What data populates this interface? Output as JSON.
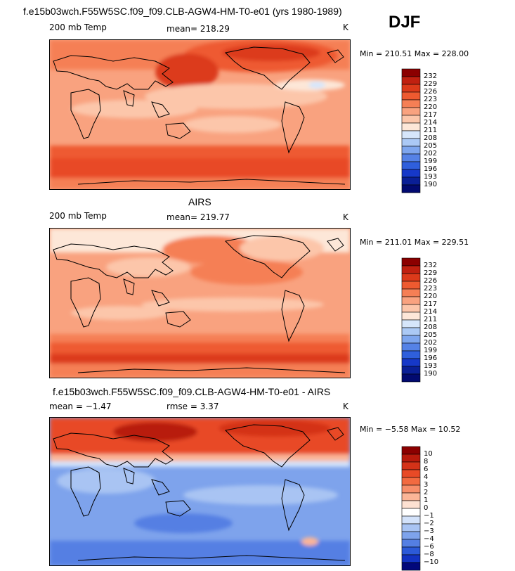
{
  "header": {
    "title": "f.e15b03wch.F55W5SC.f09_f09.CLB-AGW4-HM-T0-e01 (yrs 1980-1989)",
    "season": "DJF"
  },
  "panels": [
    {
      "id": "model",
      "heading": "",
      "left_label": "200 mb Temp",
      "center_label": "mean= 218.29",
      "units": "K",
      "minmax": "Min = 210.51 Max = 228.00",
      "colorbar_labels": [
        "232",
        "229",
        "226",
        "223",
        "220",
        "217",
        "214",
        "211",
        "208",
        "205",
        "202",
        "199",
        "196",
        "193",
        "190"
      ]
    },
    {
      "id": "airs",
      "heading": "AIRS",
      "left_label": "200 mb Temp",
      "center_label": "mean= 219.77",
      "units": "K",
      "minmax": "Min = 211.01 Max = 229.51",
      "colorbar_labels": [
        "232",
        "229",
        "226",
        "223",
        "220",
        "217",
        "214",
        "211",
        "208",
        "205",
        "202",
        "199",
        "196",
        "193",
        "190"
      ]
    },
    {
      "id": "diff",
      "heading": "f.e15b03wch.F55W5SC.f09_f09.CLB-AGW4-HM-T0-e01 - AIRS",
      "left_label": "mean =   −1.47",
      "center_label": "rmse =    3.37",
      "units": "K",
      "minmax": "Min =   −5.58 Max =   10.52",
      "colorbar_labels": [
        "10",
        "8",
        "6",
        "4",
        "3",
        "2",
        "1",
        "0",
        "−1",
        "−2",
        "−3",
        "−4",
        "−6",
        "−8",
        "−10"
      ]
    }
  ],
  "colors": {
    "abs_scale": [
      "#8b0000",
      "#c02010",
      "#dc3a1a",
      "#ee5a30",
      "#f57f55",
      "#f9a27f",
      "#fcc6aa",
      "#fde7d8",
      "#d6e6fb",
      "#abc9f5",
      "#7ea6ee",
      "#5582e6",
      "#2f5fdc",
      "#1638c8",
      "#0a1f96",
      "#020a70"
    ],
    "diff_scale": [
      "#8b0000",
      "#b81a0c",
      "#d43218",
      "#e84a26",
      "#f26a40",
      "#f78e6a",
      "#fbb597",
      "#fde1d2",
      "#ffffff",
      "#d3e2fa",
      "#a9c4f3",
      "#7ea3ec",
      "#547fe3",
      "#2c5ad8",
      "#1333c2",
      "#02087a"
    ]
  },
  "chart_data": [
    {
      "type": "heatmap",
      "title": "f.e15b03wch.F55W5SC.f09_f09.CLB-AGW4-HM-T0-e01 (yrs 1980-1989)",
      "field": "200 mb Temp",
      "units": "K",
      "mean": 218.29,
      "min": 210.51,
      "max": 228.0,
      "levels": [
        190,
        193,
        196,
        199,
        202,
        205,
        208,
        211,
        214,
        217,
        220,
        223,
        226,
        229,
        232
      ]
    },
    {
      "type": "heatmap",
      "title": "AIRS",
      "field": "200 mb Temp",
      "units": "K",
      "mean": 219.77,
      "min": 211.01,
      "max": 229.51,
      "levels": [
        190,
        193,
        196,
        199,
        202,
        205,
        208,
        211,
        214,
        217,
        220,
        223,
        226,
        229,
        232
      ]
    },
    {
      "type": "heatmap",
      "title": "f.e15b03wch.F55W5SC.f09_f09.CLB-AGW4-HM-T0-e01 - AIRS",
      "units": "K",
      "mean": -1.47,
      "rmse": 3.37,
      "min": -5.58,
      "max": 10.52,
      "levels": [
        -10,
        -8,
        -6,
        -4,
        -3,
        -2,
        -1,
        0,
        1,
        2,
        3,
        4,
        6,
        8,
        10
      ]
    }
  ]
}
